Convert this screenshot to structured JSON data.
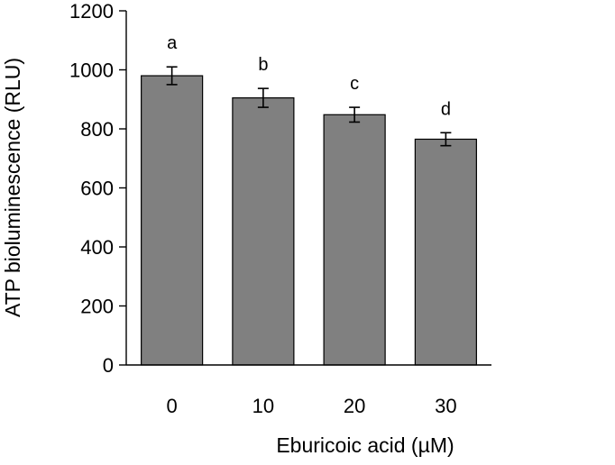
{
  "chart_data": {
    "type": "bar",
    "categories": [
      "0",
      "10",
      "20",
      "30"
    ],
    "values": [
      980,
      905,
      848,
      765
    ],
    "errors": [
      30,
      32,
      25,
      22
    ],
    "significance_labels": [
      "a",
      "b",
      "c",
      "d"
    ],
    "title": "",
    "xlabel": "Eburicoic acid (µM)",
    "ylabel": "ATP bioluminescence (RLU)",
    "ylim": [
      0,
      1200
    ],
    "yticks": [
      "0",
      "200",
      "400",
      "600",
      "800",
      "1000",
      "1200"
    ],
    "grid": false,
    "legend": "none",
    "bar_color": "#808080"
  }
}
